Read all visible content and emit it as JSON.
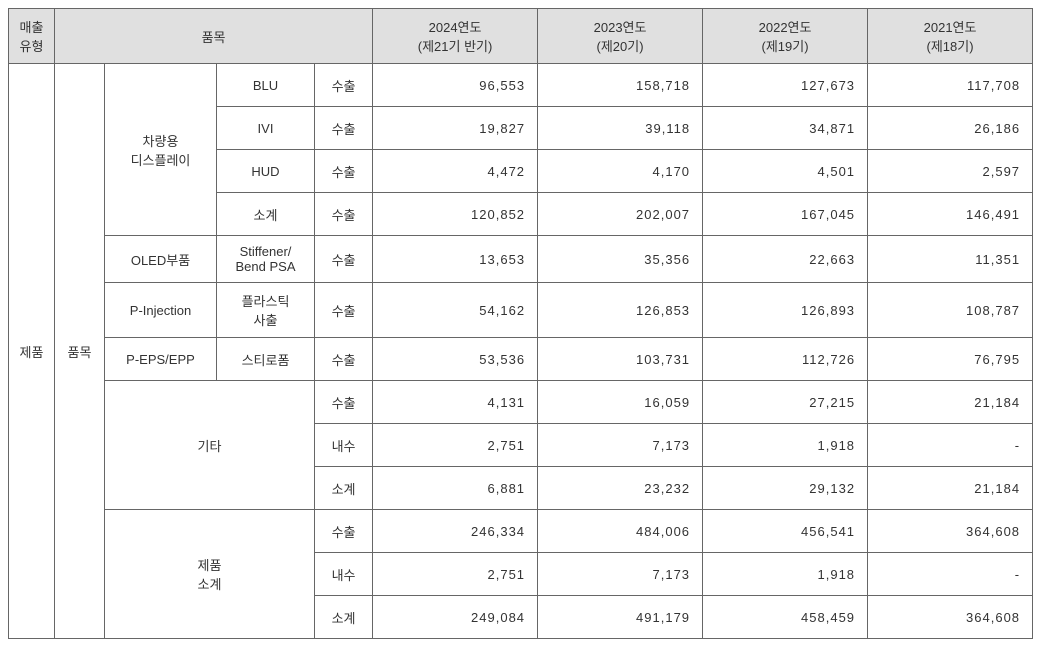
{
  "colors": {
    "header_bg": "#e0e0e0",
    "border": "#666666",
    "text": "#333333",
    "background": "#ffffff"
  },
  "typography": {
    "font_family": "Malgun Gothic",
    "font_size_pt": 10
  },
  "header": {
    "sales_type": "매출\n유형",
    "item": "품목",
    "y2024_l1": "2024연도",
    "y2024_l2": "(제21기 반기)",
    "y2023_l1": "2023연도",
    "y2023_l2": "(제20기)",
    "y2022_l1": "2022연도",
    "y2022_l2": "(제19기)",
    "y2021_l1": "2021연도",
    "y2021_l2": "(제18기)"
  },
  "labels": {
    "sales_type_val": "제품",
    "cat1_val": "품목",
    "disp": "차량용\n디스플레이",
    "blu": "BLU",
    "ivi": "IVI",
    "hud": "HUD",
    "subtotal": "소계",
    "oled": "OLED부품",
    "stiffener": "Stiffener/\nBend PSA",
    "pinj": "P-Injection",
    "plastic": "플라스틱\n사출",
    "peps": "P-EPS/EPP",
    "styro": "스티로폼",
    "etc": "기타",
    "prod_sub": "제품\n소계",
    "export": "수출",
    "domestic": "내수"
  },
  "rows": {
    "blu": {
      "y24": "96,553",
      "y23": "158,718",
      "y22": "127,673",
      "y21": "117,708"
    },
    "ivi": {
      "y24": "19,827",
      "y23": "39,118",
      "y22": "34,871",
      "y21": "26,186"
    },
    "hud": {
      "y24": "4,472",
      "y23": "4,170",
      "y22": "4,501",
      "y21": "2,597"
    },
    "disp_sub": {
      "y24": "120,852",
      "y23": "202,007",
      "y22": "167,045",
      "y21": "146,491"
    },
    "oled": {
      "y24": "13,653",
      "y23": "35,356",
      "y22": "22,663",
      "y21": "11,351"
    },
    "pinj": {
      "y24": "54,162",
      "y23": "126,853",
      "y22": "126,893",
      "y21": "108,787"
    },
    "peps": {
      "y24": "53,536",
      "y23": "103,731",
      "y22": "112,726",
      "y21": "76,795"
    },
    "etc_exp": {
      "y24": "4,131",
      "y23": "16,059",
      "y22": "27,215",
      "y21": "21,184"
    },
    "etc_dom": {
      "y24": "2,751",
      "y23": "7,173",
      "y22": "1,918",
      "y21": "-"
    },
    "etc_sub": {
      "y24": "6,881",
      "y23": "23,232",
      "y22": "29,132",
      "y21": "21,184"
    },
    "prod_exp": {
      "y24": "246,334",
      "y23": "484,006",
      "y22": "456,541",
      "y21": "364,608"
    },
    "prod_dom": {
      "y24": "2,751",
      "y23": "7,173",
      "y22": "1,918",
      "y21": "-"
    },
    "prod_sub": {
      "y24": "249,084",
      "y23": "491,179",
      "y22": "458,459",
      "y21": "364,608"
    }
  }
}
